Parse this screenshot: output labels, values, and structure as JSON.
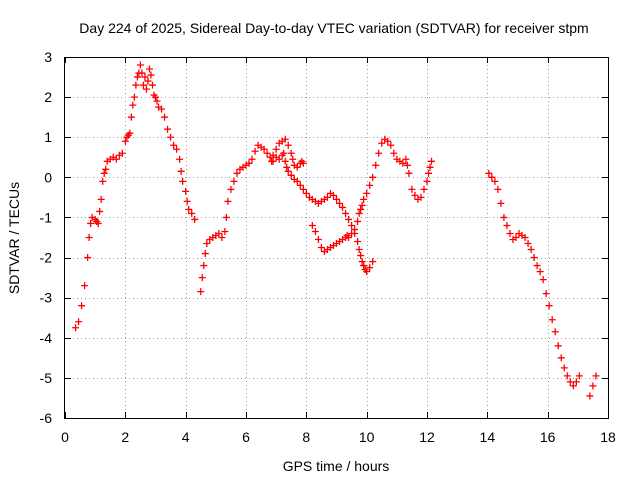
{
  "chart_data": {
    "type": "scatter",
    "title": "Day 224 of 2025, Sidereal Day-to-day VTEC variation (SDTVAR) for receiver stpm",
    "xlabel": "GPS time / hours",
    "ylabel": "SDTVAR / TECUs",
    "xlim": [
      0,
      18
    ],
    "ylim": [
      -6,
      3
    ],
    "xticks": [
      "0",
      "2",
      "4",
      "6",
      "8",
      "10",
      "12",
      "14",
      "16",
      "18"
    ],
    "yticks": [
      "-6",
      "-5",
      "-4",
      "-3",
      "-2",
      "-1",
      "0",
      "1",
      "2",
      "3"
    ],
    "grid": true,
    "marker": "+",
    "color": "#ff0000",
    "series": [
      {
        "name": "stpm",
        "points": [
          [
            0.35,
            -3.75
          ],
          [
            0.45,
            -3.6
          ],
          [
            0.55,
            -3.2
          ],
          [
            0.65,
            -2.7
          ],
          [
            0.75,
            -2.0
          ],
          [
            0.8,
            -1.5
          ],
          [
            0.85,
            -1.15
          ],
          [
            0.9,
            -1.0
          ],
          [
            1.0,
            -1.05
          ],
          [
            1.05,
            -1.1
          ],
          [
            1.1,
            -1.15
          ],
          [
            1.15,
            -0.85
          ],
          [
            1.2,
            -0.55
          ],
          [
            1.25,
            -0.1
          ],
          [
            1.3,
            0.1
          ],
          [
            1.35,
            0.2
          ],
          [
            1.4,
            0.4
          ],
          [
            1.5,
            0.45
          ],
          [
            1.6,
            0.5
          ],
          [
            1.7,
            0.45
          ],
          [
            1.8,
            0.55
          ],
          [
            1.9,
            0.6
          ],
          [
            2.0,
            0.9
          ],
          [
            2.05,
            1.0
          ],
          [
            2.1,
            1.05
          ],
          [
            2.15,
            1.1
          ],
          [
            2.2,
            1.5
          ],
          [
            2.25,
            1.8
          ],
          [
            2.3,
            2.0
          ],
          [
            2.35,
            2.3
          ],
          [
            2.4,
            2.5
          ],
          [
            2.45,
            2.6
          ],
          [
            2.5,
            2.8
          ],
          [
            2.55,
            2.6
          ],
          [
            2.6,
            2.3
          ],
          [
            2.65,
            2.5
          ],
          [
            2.7,
            2.2
          ],
          [
            2.75,
            2.4
          ],
          [
            2.8,
            2.7
          ],
          [
            2.85,
            2.55
          ],
          [
            2.9,
            2.3
          ],
          [
            2.95,
            2.05
          ],
          [
            3.0,
            2.0
          ],
          [
            3.05,
            1.9
          ],
          [
            3.1,
            1.75
          ],
          [
            3.2,
            1.7
          ],
          [
            3.3,
            1.5
          ],
          [
            3.4,
            1.2
          ],
          [
            3.5,
            1.0
          ],
          [
            3.6,
            0.8
          ],
          [
            3.7,
            0.7
          ],
          [
            3.8,
            0.45
          ],
          [
            3.85,
            0.15
          ],
          [
            3.9,
            -0.1
          ],
          [
            4.0,
            -0.35
          ],
          [
            4.05,
            -0.6
          ],
          [
            4.1,
            -0.8
          ],
          [
            4.2,
            -0.9
          ],
          [
            4.3,
            -1.05
          ],
          [
            4.5,
            -2.85
          ],
          [
            4.55,
            -2.5
          ],
          [
            4.6,
            -2.2
          ],
          [
            4.65,
            -1.9
          ],
          [
            4.7,
            -1.65
          ],
          [
            4.8,
            -1.55
          ],
          [
            4.9,
            -1.5
          ],
          [
            5.0,
            -1.45
          ],
          [
            5.1,
            -1.4
          ],
          [
            5.2,
            -1.5
          ],
          [
            5.3,
            -1.35
          ],
          [
            5.35,
            -1.0
          ],
          [
            5.4,
            -0.6
          ],
          [
            5.5,
            -0.3
          ],
          [
            5.6,
            -0.1
          ],
          [
            5.7,
            0.1
          ],
          [
            5.8,
            0.2
          ],
          [
            5.9,
            0.25
          ],
          [
            6.0,
            0.3
          ],
          [
            6.1,
            0.35
          ],
          [
            6.2,
            0.45
          ],
          [
            6.3,
            0.65
          ],
          [
            6.4,
            0.8
          ],
          [
            6.5,
            0.75
          ],
          [
            6.6,
            0.7
          ],
          [
            6.7,
            0.6
          ],
          [
            6.8,
            0.5
          ],
          [
            6.85,
            0.4
          ],
          [
            6.9,
            0.55
          ],
          [
            7.0,
            0.7
          ],
          [
            7.1,
            0.85
          ],
          [
            7.2,
            0.9
          ],
          [
            7.3,
            0.95
          ],
          [
            7.4,
            0.8
          ],
          [
            7.5,
            0.6
          ],
          [
            7.55,
            0.45
          ],
          [
            7.6,
            0.3
          ],
          [
            7.7,
            0.25
          ],
          [
            7.8,
            0.35
          ],
          [
            7.85,
            0.4
          ],
          [
            7.9,
            0.35
          ],
          [
            6.9,
            0.4
          ],
          [
            7.0,
            0.5
          ],
          [
            7.1,
            0.45
          ],
          [
            7.2,
            0.55
          ],
          [
            7.25,
            0.6
          ],
          [
            7.3,
            0.4
          ],
          [
            7.35,
            0.25
          ],
          [
            7.4,
            0.15
          ],
          [
            7.5,
            0.05
          ],
          [
            7.6,
            -0.05
          ],
          [
            7.7,
            -0.1
          ],
          [
            7.8,
            -0.2
          ],
          [
            7.9,
            -0.3
          ],
          [
            8.0,
            -0.4
          ],
          [
            8.1,
            -0.5
          ],
          [
            8.2,
            -0.55
          ],
          [
            8.3,
            -0.6
          ],
          [
            8.4,
            -0.65
          ],
          [
            8.5,
            -0.6
          ],
          [
            8.6,
            -0.55
          ],
          [
            8.7,
            -0.5
          ],
          [
            8.8,
            -0.4
          ],
          [
            8.9,
            -0.45
          ],
          [
            9.0,
            -0.55
          ],
          [
            9.1,
            -0.65
          ],
          [
            9.2,
            -0.75
          ],
          [
            9.3,
            -0.9
          ],
          [
            9.4,
            -1.05
          ],
          [
            9.5,
            -1.2
          ],
          [
            9.6,
            -1.4
          ],
          [
            9.7,
            -1.6
          ],
          [
            9.75,
            -1.8
          ],
          [
            9.8,
            -1.95
          ],
          [
            9.85,
            -2.1
          ],
          [
            9.9,
            -2.2
          ],
          [
            9.95,
            -2.3
          ],
          [
            10.0,
            -2.35
          ],
          [
            10.1,
            -2.25
          ],
          [
            10.2,
            -2.1
          ],
          [
            8.2,
            -1.2
          ],
          [
            8.3,
            -1.35
          ],
          [
            8.4,
            -1.55
          ],
          [
            8.5,
            -1.75
          ],
          [
            8.6,
            -1.85
          ],
          [
            8.7,
            -1.8
          ],
          [
            8.8,
            -1.75
          ],
          [
            8.9,
            -1.7
          ],
          [
            9.0,
            -1.65
          ],
          [
            9.1,
            -1.6
          ],
          [
            9.2,
            -1.55
          ],
          [
            9.3,
            -1.5
          ],
          [
            9.35,
            -1.45
          ],
          [
            9.4,
            -1.5
          ],
          [
            9.5,
            -1.4
          ],
          [
            9.6,
            -1.3
          ],
          [
            9.7,
            -1.1
          ],
          [
            9.75,
            -0.9
          ],
          [
            9.8,
            -0.8
          ],
          [
            9.85,
            -0.7
          ],
          [
            9.9,
            -0.55
          ],
          [
            10.0,
            -0.4
          ],
          [
            10.1,
            -0.2
          ],
          [
            10.2,
            0.0
          ],
          [
            10.3,
            0.3
          ],
          [
            10.4,
            0.6
          ],
          [
            10.5,
            0.85
          ],
          [
            10.6,
            0.95
          ],
          [
            10.7,
            0.9
          ],
          [
            10.8,
            0.8
          ],
          [
            10.9,
            0.6
          ],
          [
            11.0,
            0.45
          ],
          [
            11.1,
            0.4
          ],
          [
            11.2,
            0.35
          ],
          [
            11.3,
            0.45
          ],
          [
            11.35,
            0.3
          ],
          [
            11.4,
            0.1
          ],
          [
            11.5,
            -0.3
          ],
          [
            11.6,
            -0.45
          ],
          [
            11.7,
            -0.55
          ],
          [
            11.8,
            -0.5
          ],
          [
            11.9,
            -0.3
          ],
          [
            12.0,
            -0.1
          ],
          [
            12.05,
            0.1
          ],
          [
            12.1,
            0.25
          ],
          [
            12.15,
            0.4
          ],
          [
            14.05,
            0.1
          ],
          [
            14.15,
            0.0
          ],
          [
            14.25,
            -0.1
          ],
          [
            14.35,
            -0.3
          ],
          [
            14.45,
            -0.65
          ],
          [
            14.55,
            -1.0
          ],
          [
            14.65,
            -1.2
          ],
          [
            14.75,
            -1.4
          ],
          [
            14.85,
            -1.55
          ],
          [
            14.95,
            -1.5
          ],
          [
            15.05,
            -1.4
          ],
          [
            15.15,
            -1.45
          ],
          [
            15.25,
            -1.5
          ],
          [
            15.35,
            -1.65
          ],
          [
            15.45,
            -1.8
          ],
          [
            15.55,
            -2.0
          ],
          [
            15.65,
            -2.2
          ],
          [
            15.75,
            -2.35
          ],
          [
            15.85,
            -2.55
          ],
          [
            15.95,
            -2.9
          ],
          [
            16.05,
            -3.2
          ],
          [
            16.15,
            -3.55
          ],
          [
            16.25,
            -3.85
          ],
          [
            16.35,
            -4.2
          ],
          [
            16.45,
            -4.5
          ],
          [
            16.55,
            -4.75
          ],
          [
            16.65,
            -4.95
          ],
          [
            16.75,
            -5.1
          ],
          [
            16.85,
            -5.2
          ],
          [
            16.95,
            -5.1
          ],
          [
            17.05,
            -4.95
          ],
          [
            17.4,
            -5.45
          ],
          [
            17.5,
            -5.2
          ],
          [
            17.6,
            -4.95
          ]
        ]
      }
    ]
  }
}
